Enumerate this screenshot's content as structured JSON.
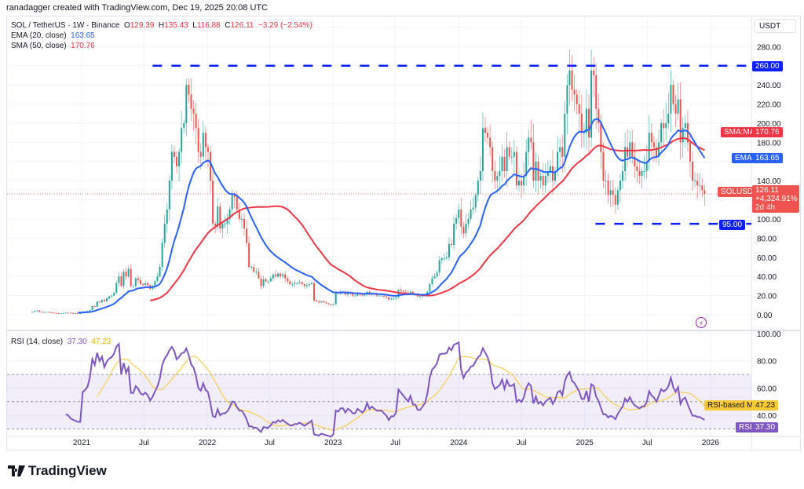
{
  "attribution": "ranadagger created with TradingView.com, Dec 19, 2025 20:08 UTC",
  "legend": {
    "symbol": "SOL / TetherUS · 1W · Binance",
    "open_label": "O",
    "open": "129.39",
    "high_label": "H",
    "high": "135.43",
    "low_label": "L",
    "low": "116.88",
    "close_label": "C",
    "close": "126.11",
    "change": "−3.29 (−2.54%)",
    "ema_label": "EMA (20, close)",
    "ema_value": "163.65",
    "sma_label": "SMA (50, close)",
    "sma_value": "170.76",
    "rsi_label": "RSI (14, close)",
    "rsi_value": "37.30",
    "rsi_ma_value": "47.23"
  },
  "currency": "USDT",
  "tags": {
    "level_high": "260.00",
    "sma_name": "SMA:MA",
    "sma": "170.76",
    "ema_name": "EMA",
    "ema": "163.65",
    "symbol": "SOLUSDT",
    "price": "126.11",
    "change_pct": "+4,324.91%",
    "countdown": "2d 4h",
    "level_low": "95.00",
    "rsi_ma_name": "RSI-based MA",
    "rsi_ma": "47.23",
    "rsi_name": "RSI",
    "rsi": "37.30"
  },
  "logo": {
    "text": "TradingView"
  },
  "colors": {
    "up": "#26a69a",
    "down": "#ef5350",
    "ema": "#2962ff",
    "sma": "#f23645",
    "levels": "#0d1fff",
    "rsi": "#7e57c2",
    "rsi_ma": "#f7c934"
  },
  "chart_data": {
    "type": "candlestick",
    "interval": "1W",
    "first_week": "2020-08-10",
    "closes": [
      3.2,
      4.0,
      4.5,
      3.0,
      2.8,
      2.9,
      3.0,
      2.5,
      2.3,
      1.8,
      1.6,
      1.5,
      1.5,
      1.8,
      2.2,
      2.1,
      1.8,
      1.7,
      1.6,
      1.5,
      1.5,
      3.4,
      3.6,
      3.9,
      5.0,
      9.0,
      8.5,
      14,
      13,
      15.5,
      14,
      17,
      19,
      20,
      23,
      33,
      40,
      30,
      45,
      40,
      48,
      30,
      30,
      38,
      36,
      32,
      31,
      33,
      31,
      27,
      30,
      35,
      40,
      50,
      75,
      95,
      110,
      140,
      170,
      165,
      155,
      170,
      195,
      200,
      240,
      230,
      215,
      210,
      195,
      170,
      165,
      190,
      175,
      170,
      140,
      95,
      92,
      113,
      90,
      95,
      95,
      100,
      110,
      125,
      123,
      110,
      100,
      100,
      90,
      75,
      50,
      50,
      45,
      45,
      38,
      30,
      37,
      35,
      35,
      38,
      42,
      40,
      43,
      40,
      42,
      38,
      35,
      32,
      32,
      33,
      33,
      34,
      32,
      30,
      31,
      32,
      33,
      15,
      14,
      13,
      14,
      13,
      12,
      11,
      10,
      11,
      23,
      22,
      24,
      24,
      21,
      23,
      22,
      20,
      20,
      22,
      21,
      20,
      21,
      24,
      21,
      22,
      21,
      20,
      20,
      20,
      19,
      18,
      16,
      17,
      17,
      18,
      26,
      25,
      24,
      23,
      22,
      24,
      21,
      21,
      19,
      19,
      20,
      21,
      24,
      32,
      38,
      40,
      44,
      57,
      59,
      59,
      60,
      74,
      73,
      95,
      101,
      110,
      92,
      85,
      95,
      100,
      110,
      112,
      125,
      140,
      150,
      195,
      190,
      185,
      175,
      150,
      140,
      145,
      150,
      165,
      150,
      175,
      165,
      165,
      170,
      135,
      140,
      135,
      145,
      170,
      185,
      180,
      140,
      160,
      140,
      145,
      135,
      145,
      150,
      155,
      140,
      150,
      170,
      175,
      165,
      210,
      240,
      255,
      235,
      230,
      220,
      210,
      190,
      190,
      215,
      185,
      255,
      250,
      215,
      200,
      170,
      140,
      140,
      125,
      130,
      125,
      115,
      130,
      140,
      150,
      175,
      165,
      180,
      165,
      155,
      150,
      145,
      150,
      150,
      160,
      190,
      180,
      175,
      165,
      180,
      200,
      195,
      200,
      210,
      240,
      220,
      210,
      225,
      180,
      195,
      200,
      180,
      160,
      140,
      140,
      135,
      135,
      130,
      126.11
    ],
    "indicators": [
      {
        "name": "EMA",
        "length": 20
      },
      {
        "name": "SMA",
        "length": 50
      },
      {
        "name": "RSI",
        "length": 14,
        "ma_length": 14,
        "bands": [
          30,
          70
        ]
      }
    ],
    "levels": [
      {
        "value": 260,
        "from": "2021-07-26"
      },
      {
        "value": 95,
        "from": "2025-02-01"
      }
    ],
    "y_axis": {
      "range": [
        0,
        300
      ],
      "ticks": [
        "280.00",
        "240.00",
        "220.00",
        "200.00",
        "180.00",
        "140.00",
        "100.00",
        "80.00",
        "60.00",
        "40.00",
        "20.00",
        "0.00"
      ]
    },
    "rsi_axis": {
      "range": [
        0,
        100
      ],
      "ticks": [
        "100.00",
        "80.00",
        "60.00",
        "40.00"
      ]
    },
    "x_axis": {
      "ticks": [
        "2021",
        "Jul",
        "2022",
        "Jul",
        "2023",
        "Jul",
        "2024",
        "Jul",
        "2025",
        "Jul",
        "2026"
      ]
    },
    "grid": true
  }
}
